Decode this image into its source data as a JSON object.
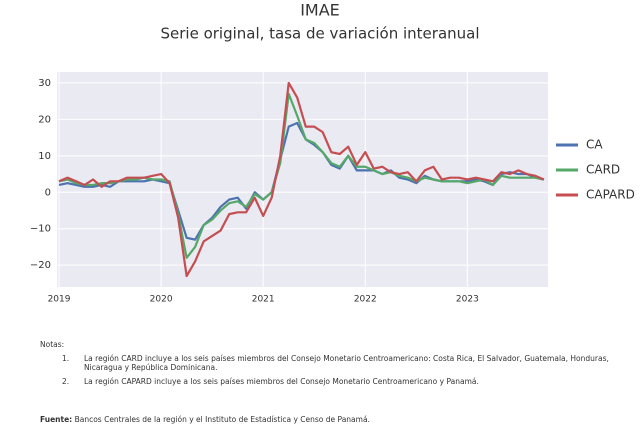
{
  "chart_data": {
    "type": "line",
    "title": "IMAE",
    "subtitle": "Serie original, tasa de variación interanual",
    "x": [
      2019,
      2019.083,
      2019.167,
      2019.25,
      2019.333,
      2019.417,
      2019.5,
      2019.583,
      2019.667,
      2019.75,
      2019.833,
      2019.917,
      2020,
      2020.083,
      2020.167,
      2020.25,
      2020.333,
      2020.417,
      2020.5,
      2020.583,
      2020.667,
      2020.75,
      2020.833,
      2020.917,
      2021,
      2021.083,
      2021.167,
      2021.25,
      2021.333,
      2021.417,
      2021.5,
      2021.583,
      2021.667,
      2021.75,
      2021.833,
      2021.917,
      2022,
      2022.083,
      2022.167,
      2022.25,
      2022.333,
      2022.417,
      2022.5,
      2022.583,
      2022.667,
      2022.75,
      2022.833,
      2022.917,
      2023,
      2023.083,
      2023.167,
      2023.25,
      2023.333,
      2023.417,
      2023.5,
      2023.583,
      2023.667,
      2023.75
    ],
    "series": [
      {
        "name": "CA",
        "color": "#4c72b0",
        "values": [
          2,
          2.5,
          2,
          1.5,
          1.5,
          2,
          1.5,
          3,
          3,
          3,
          3,
          3.5,
          3,
          2.5,
          -5,
          -12.5,
          -13,
          -9,
          -7,
          -4,
          -2,
          -1.5,
          -4.5,
          0,
          -2,
          0,
          9,
          18,
          19,
          14.5,
          13,
          11,
          7.5,
          6.5,
          10,
          6,
          6,
          6,
          5,
          6,
          4,
          3.5,
          2.5,
          4.5,
          3.5,
          3,
          3,
          3,
          3,
          3.5,
          3,
          2,
          5,
          5.5,
          5,
          5,
          4,
          3.5
        ]
      },
      {
        "name": "CARD",
        "color": "#55a868",
        "values": [
          3,
          3.5,
          2.5,
          2,
          2,
          2.5,
          2.5,
          3,
          3.5,
          3.5,
          4,
          3.5,
          3.5,
          3,
          -6,
          -18,
          -15,
          -9,
          -7.5,
          -5,
          -3,
          -2.5,
          -4,
          -0.5,
          -2,
          0,
          8,
          27,
          21,
          14.5,
          13.5,
          11,
          8,
          7,
          10,
          7,
          7,
          6,
          5,
          5.5,
          4.5,
          4,
          3,
          4,
          3.5,
          3,
          3,
          3,
          2.5,
          3,
          3.5,
          2,
          4.5,
          4,
          4,
          4,
          4,
          3.5
        ]
      },
      {
        "name": "CAPARD",
        "color": "#c44e52",
        "values": [
          3,
          4,
          3,
          2,
          3.5,
          1.5,
          3,
          3,
          4,
          4,
          4,
          4.5,
          5,
          2.5,
          -7,
          -23,
          -19,
          -13.5,
          -12,
          -10.5,
          -6,
          -5.5,
          -5.5,
          -1.5,
          -6.5,
          -1.5,
          10,
          30,
          26,
          18,
          18,
          16.5,
          11,
          10.5,
          12.5,
          7.5,
          11,
          6.5,
          7,
          5.5,
          5,
          5.5,
          3,
          6,
          7,
          3.5,
          4,
          4,
          3.5,
          4,
          3.5,
          3,
          5.5,
          5,
          6,
          5,
          4.5,
          3.5
        ]
      }
    ],
    "xlim": [
      2018.98,
      2023.79
    ],
    "xticks": [
      2019,
      2020,
      2021,
      2022,
      2023
    ],
    "ylim": [
      -26,
      33
    ],
    "yticks": [
      {
        "value": -20,
        "label": "−20"
      },
      {
        "value": -10,
        "label": "−10"
      },
      0,
      10,
      20,
      30
    ],
    "grid": true,
    "legend": "right"
  },
  "notes": {
    "heading": "Notas:",
    "items": [
      {
        "number": "1.",
        "text": "La región CARD incluye a los seis países miembros del Consejo Monetario Centroamericano: Costa Rica, El Salvador, Guatemala, Honduras, Nicaragua y República Dominicana."
      },
      {
        "number": "2.",
        "text": "La región CAPARD incluye a los seis países miembros del Consejo Monetario Centroamericano y Panamá."
      }
    ]
  },
  "source": {
    "label": "Fuente:",
    "text": "Bancos Centrales de la región y el Instituto de Estadística y Censo de Panamá."
  }
}
